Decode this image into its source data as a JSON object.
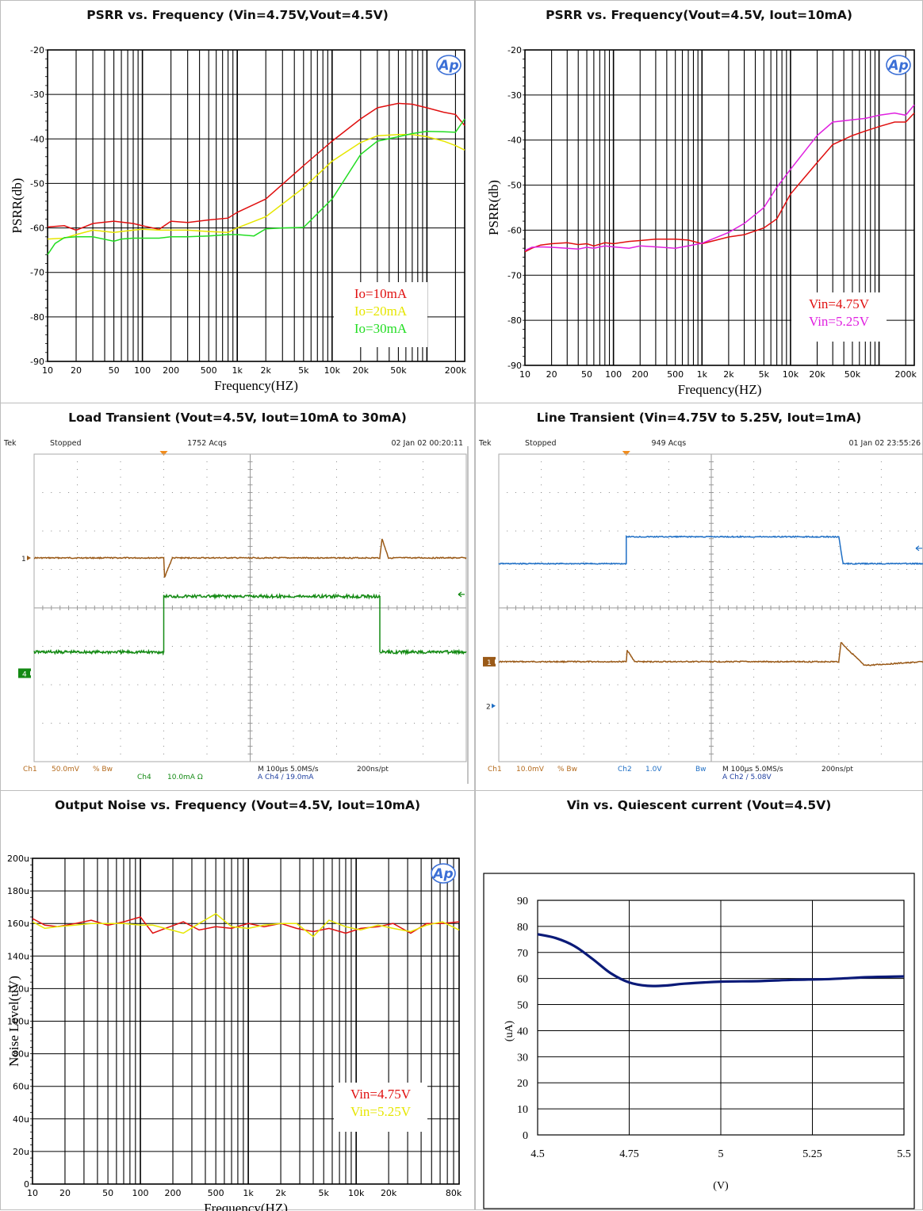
{
  "chart_data": [
    {
      "id": "psrr1",
      "type": "line",
      "title": "PSRR vs. Frequency (Vin=4.75V,Vout=4.5V)",
      "xlabel": "Frequency(HZ)",
      "ylabel": "PSRR(db)",
      "xscale": "log",
      "xlim": [
        10,
        250000
      ],
      "ylim": [
        -90,
        -20
      ],
      "xticks": [
        10,
        20,
        50,
        100,
        200,
        500,
        1000,
        2000,
        5000,
        10000,
        20000,
        50000,
        200000
      ],
      "xtick_labels": [
        "10",
        "20",
        "50",
        "100",
        "200",
        "500",
        "1k",
        "2k",
        "5k",
        "10k",
        "20k",
        "50k",
        "200k"
      ],
      "yticks": [
        -20,
        -30,
        -40,
        -50,
        -60,
        -70,
        -80,
        -90
      ],
      "ytick_labels": [
        "-20",
        "-30",
        "-40",
        "-50",
        "-60",
        "-70",
        "-80",
        "-90"
      ],
      "legend": "bottom-right",
      "logo": "Ap",
      "series": [
        {
          "name": "Io=10mA",
          "color": "#e01010",
          "x": [
            10,
            15,
            20,
            30,
            50,
            80,
            100,
            150,
            200,
            300,
            500,
            800,
            1000,
            2000,
            5000,
            10000,
            20000,
            30000,
            50000,
            70000,
            100000,
            150000,
            200000,
            250000
          ],
          "y": [
            -59.8,
            -59.5,
            -60.5,
            -59,
            -58.5,
            -59,
            -59.5,
            -60.3,
            -58.5,
            -58.8,
            -58.2,
            -57.8,
            -56.5,
            -53.5,
            -46,
            -40.5,
            -35.5,
            -33,
            -32,
            -32.2,
            -33,
            -34,
            -34.5,
            -37
          ]
        },
        {
          "name": "Io=20mA",
          "color": "#e6e600",
          "x": [
            10,
            15,
            20,
            30,
            50,
            80,
            100,
            150,
            200,
            300,
            500,
            800,
            1000,
            2000,
            5000,
            10000,
            20000,
            30000,
            50000,
            70000,
            100000,
            150000,
            200000,
            250000
          ],
          "y": [
            -62.5,
            -62.3,
            -61.5,
            -60.5,
            -61,
            -60.5,
            -60.3,
            -60.5,
            -60.5,
            -60.5,
            -60.8,
            -61,
            -60,
            -57.5,
            -51,
            -45,
            -40.8,
            -39.3,
            -39,
            -39,
            -39.5,
            -40.5,
            -41.5,
            -42.5
          ]
        },
        {
          "name": "Io=30mA",
          "color": "#22dd22",
          "x": [
            10,
            12,
            15,
            20,
            30,
            50,
            60,
            80,
            100,
            150,
            200,
            300,
            500,
            800,
            1000,
            1500,
            2000,
            3000,
            5000,
            10000,
            20000,
            30000,
            50000,
            70000,
            100000,
            150000,
            200000,
            250000
          ],
          "y": [
            -66,
            -63.5,
            -62.2,
            -62,
            -62,
            -63,
            -62.5,
            -62.3,
            -62.3,
            -62.3,
            -62,
            -62,
            -61.8,
            -61.5,
            -61.5,
            -61.8,
            -60.2,
            -60,
            -59.9,
            -53.5,
            -43.5,
            -40.5,
            -39.5,
            -38.8,
            -38.3,
            -38.4,
            -38.5,
            -35.5
          ]
        }
      ]
    },
    {
      "id": "psrr2",
      "type": "line",
      "title": "PSRR vs. Frequency(Vout=4.5V, Iout=10mA)",
      "xlabel": "Frequency(HZ)",
      "ylabel": "PSRR(db)",
      "xscale": "log",
      "xlim": [
        10,
        250000
      ],
      "ylim": [
        -90,
        -20
      ],
      "xticks": [
        10,
        20,
        50,
        100,
        200,
        500,
        1000,
        2000,
        5000,
        10000,
        20000,
        50000,
        200000
      ],
      "xtick_labels": [
        "10",
        "20",
        "50",
        "100",
        "200",
        "500",
        "1k",
        "2k",
        "5k",
        "10k",
        "20k",
        "50k",
        "200k"
      ],
      "yticks": [
        -20,
        -30,
        -40,
        -50,
        -60,
        -70,
        -80,
        -90
      ],
      "ytick_labels": [
        "-20",
        "-30",
        "-40",
        "-50",
        "-60",
        "-70",
        "-80",
        "-90"
      ],
      "legend": "bottom-right",
      "logo": "Ap",
      "series": [
        {
          "name": "Vin=4.75V",
          "color": "#e01010",
          "x": [
            10,
            12,
            15,
            20,
            30,
            40,
            50,
            60,
            80,
            100,
            150,
            200,
            300,
            500,
            700,
            1000,
            2000,
            3000,
            5000,
            7000,
            10000,
            20000,
            30000,
            50000,
            70000,
            100000,
            150000,
            200000,
            250000
          ],
          "y": [
            -64.8,
            -64,
            -63.3,
            -63,
            -62.8,
            -63.2,
            -63,
            -63.5,
            -62.8,
            -63,
            -62.5,
            -62.3,
            -62,
            -62,
            -62.2,
            -63,
            -61.5,
            -61,
            -59.5,
            -57.5,
            -52,
            -45,
            -41,
            -39,
            -38,
            -37,
            -36,
            -36,
            -34
          ]
        },
        {
          "name": "Vin=5.25V",
          "color": "#e020e0",
          "x": [
            10,
            12,
            15,
            20,
            30,
            40,
            50,
            60,
            80,
            100,
            150,
            200,
            300,
            500,
            700,
            1000,
            2000,
            3000,
            5000,
            7000,
            10000,
            20000,
            30000,
            50000,
            70000,
            100000,
            150000,
            200000,
            250000
          ],
          "y": [
            -64.5,
            -63.8,
            -63.7,
            -63.8,
            -64,
            -64.2,
            -63.8,
            -64,
            -63.5,
            -63.7,
            -64,
            -63.5,
            -63.7,
            -64,
            -63.5,
            -62.9,
            -60.5,
            -58.5,
            -55,
            -50.5,
            -46.5,
            -39,
            -36,
            -35.5,
            -35.2,
            -34.5,
            -34,
            -34.5,
            -32.2
          ]
        }
      ]
    },
    {
      "id": "load",
      "type": "line",
      "title": "Load Transient (Vout=4.5V, Iout=10mA to 30mA)",
      "scope": {
        "brand": "Tek",
        "state": "Stopped",
        "acqs": "1752 Acqs",
        "date": "02 Jan 02 00:20:11",
        "ch1_text": "Ch1",
        "ch1_scale": "50.0mV",
        "ch1_bw": "% Bw",
        "ch4_text": "Ch4",
        "ch4_scale": "10.0mA Ω",
        "timebase": "M 100µs 5.0MS/s",
        "trigger": "A  Ch4  ∕  19.0mA",
        "sample": "200ns/pt"
      },
      "markers": [
        "1",
        "4"
      ],
      "divisions": {
        "x": 10,
        "y": 8
      },
      "series": [
        {
          "name": "Ch1",
          "color": "#9a5a18",
          "x": [
            0,
            3,
            3.02,
            3.2,
            8,
            8.05,
            8.2,
            10
          ],
          "y": [
            5.3,
            5.3,
            4.8,
            5.3,
            5.3,
            5.8,
            5.3,
            5.3
          ]
        },
        {
          "name": "Ch4",
          "color": "#138a13",
          "x": [
            0,
            3,
            3.0,
            8,
            8.0,
            10
          ],
          "y": [
            2.85,
            2.85,
            4.3,
            4.3,
            2.85,
            2.85
          ]
        }
      ]
    },
    {
      "id": "line",
      "type": "line",
      "title": "Line Transient (Vin=4.75V to 5.25V, Iout=1mA)",
      "scope": {
        "brand": "Tek",
        "state": "Stopped",
        "acqs": "949 Acqs",
        "date": "01 Jan 02 23:55:26",
        "ch1_text": "Ch1",
        "ch1_scale": "10.0mV",
        "ch1_bw": "% Bw",
        "ch2_text": "Ch2",
        "ch2_scale": "1.0V",
        "ch2_bw": "Bw",
        "timebase": "M 100µs 5.0MS/s",
        "trigger": "A  Ch2  ∕  5.08V",
        "sample": "200ns/pt"
      },
      "markers": [
        "1",
        "2"
      ],
      "divisions": {
        "x": 10,
        "y": 8
      },
      "series": [
        {
          "name": "Ch1",
          "color": "#9a5a18",
          "x": [
            0,
            3,
            3.02,
            3.2,
            8,
            8.05,
            8.6,
            10
          ],
          "y": [
            2.6,
            2.6,
            2.9,
            2.6,
            2.6,
            3.1,
            2.5,
            2.6
          ]
        },
        {
          "name": "Ch2",
          "color": "#1f6fc5",
          "x": [
            0,
            3,
            3.0,
            8,
            8.1,
            10
          ],
          "y": [
            5.15,
            5.15,
            5.85,
            5.85,
            5.15,
            5.15
          ]
        }
      ]
    },
    {
      "id": "noise",
      "type": "line",
      "title": "Output Noise vs. Frequency (Vout=4.5V, Iout=10mA)",
      "xlabel": "Frequency(HZ)",
      "ylabel": "Noise Level(uV)",
      "xscale": "log",
      "xlim": [
        10,
        90000
      ],
      "ylim": [
        0,
        200
      ],
      "xticks": [
        10,
        20,
        50,
        100,
        200,
        500,
        1000,
        2000,
        5000,
        10000,
        20000,
        80000
      ],
      "xtick_labels": [
        "10",
        "20",
        "50",
        "100",
        "200",
        "500",
        "1k",
        "2k",
        "5k",
        "10k",
        "20k",
        "80k"
      ],
      "yticks": [
        0,
        20,
        40,
        60,
        80,
        100,
        120,
        140,
        160,
        180,
        200
      ],
      "ytick_labels": [
        "0",
        "20u",
        "40u",
        "60u",
        "80u",
        "100u",
        "120u",
        "140u",
        "160u",
        "180u",
        "200u"
      ],
      "legend": "bottom-right",
      "logo": "Ap",
      "series": [
        {
          "name": "Vin=4.75V",
          "color": "#e01010",
          "x": [
            10,
            13,
            17,
            25,
            35,
            50,
            70,
            100,
            130,
            170,
            250,
            350,
            500,
            700,
            1000,
            1400,
            2000,
            2800,
            4000,
            5600,
            8000,
            11000,
            16000,
            22000,
            32000,
            45000,
            63000,
            90000
          ],
          "y": [
            163,
            159,
            158,
            160,
            162,
            159,
            161,
            164,
            154,
            157,
            161,
            156,
            158,
            157,
            160,
            158,
            160,
            157,
            155,
            157,
            154,
            157,
            158,
            160,
            154,
            160,
            160,
            161
          ]
        },
        {
          "name": "Vin=5.25V",
          "color": "#e6e600",
          "x": [
            10,
            13,
            17,
            25,
            35,
            50,
            70,
            100,
            130,
            170,
            250,
            350,
            500,
            700,
            1000,
            1400,
            2000,
            2800,
            4000,
            5600,
            8000,
            11000,
            16000,
            22000,
            32000,
            45000,
            63000,
            90000
          ],
          "y": [
            161,
            157,
            158,
            159,
            160,
            160,
            160,
            159,
            159,
            157,
            154,
            160,
            166,
            158,
            157,
            159,
            160,
            160,
            152,
            162,
            158,
            156,
            159,
            157,
            155,
            159,
            161,
            156
          ]
        }
      ]
    },
    {
      "id": "quiescent",
      "type": "line",
      "title": "Vin vs. Quiescent current (Vout=4.5V)",
      "xlabel": "(V)",
      "ylabel": "(uA)",
      "xlim": [
        4.5,
        5.5
      ],
      "ylim": [
        0,
        90
      ],
      "xticks": [
        4.5,
        4.75,
        5,
        5.25,
        5.5
      ],
      "xtick_labels": [
        "4.5",
        "4.75",
        "5",
        "5.25",
        "5.5"
      ],
      "yticks": [
        0,
        10,
        20,
        30,
        40,
        50,
        60,
        70,
        80,
        90
      ],
      "ytick_labels": [
        "0",
        "10",
        "20",
        "30",
        "40",
        "50",
        "60",
        "70",
        "80",
        "90"
      ],
      "series": [
        {
          "color": "#0a1a78",
          "x": [
            4.5,
            4.55,
            4.6,
            4.65,
            4.7,
            4.75,
            4.8,
            4.85,
            4.9,
            5.0,
            5.1,
            5.2,
            5.3,
            5.4,
            5.5
          ],
          "y": [
            77,
            75.5,
            72.5,
            67.5,
            62,
            58.5,
            57.2,
            57.3,
            58,
            58.8,
            59,
            59.5,
            59.8,
            60.5,
            60.8
          ]
        }
      ]
    }
  ]
}
